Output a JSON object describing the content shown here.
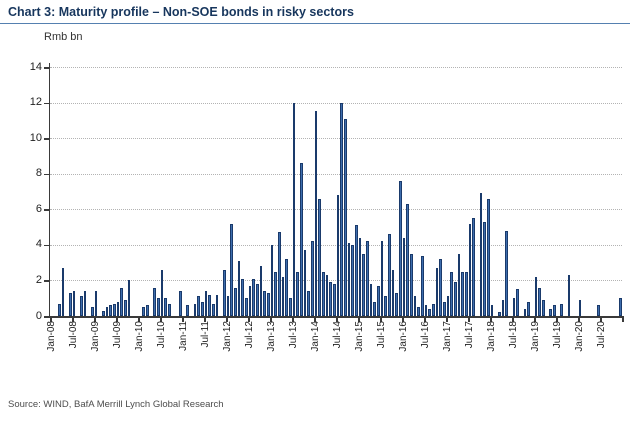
{
  "header": {
    "title": "Chart 3: Maturity profile – Non-SOE bonds in risky sectors"
  },
  "footer": {
    "source": "Source: WIND, BafA Merrill Lynch Global Research"
  },
  "colors": {
    "title": "#17365D",
    "title_rule": "#5580b0",
    "bar_fill": "#3E6DAD",
    "bar_border": "#1A3A6B",
    "axis": "#3a3a3a",
    "gridline": "#b3b3b3"
  },
  "chart_data": {
    "type": "bar",
    "title": "Chart 3: Maturity profile – Non-SOE bonds in risky sectors",
    "unit_label": "Rmb bn",
    "xlabel": "",
    "ylabel": "Rmb bn",
    "ylim": [
      0,
      14
    ],
    "yticks": [
      0,
      2,
      4,
      6,
      8,
      10,
      12,
      14
    ],
    "grid": "horizontal-dotted",
    "legend": "none",
    "xtick_interval_months": 6,
    "xtick_labels": [
      "Jan-08",
      "Jul-08",
      "Jan-09",
      "Jul-09",
      "Jan-10",
      "Jul-10",
      "Jan-11",
      "Jul-11",
      "Jan-12",
      "Jul-12",
      "Jan-13",
      "Jul-13",
      "Jan-14",
      "Jul-14",
      "Jan-15",
      "Jul-15",
      "Jan-16",
      "Jul-16",
      "Jan-17",
      "Jul-17",
      "Jan-18",
      "Jul-18",
      "Jan-19",
      "Jul-19",
      "Jan-20",
      "Jul-20"
    ],
    "categories": [
      "Jan-08",
      "Feb-08",
      "Mar-08",
      "Apr-08",
      "May-08",
      "Jun-08",
      "Jul-08",
      "Aug-08",
      "Sep-08",
      "Oct-08",
      "Nov-08",
      "Dec-08",
      "Jan-09",
      "Feb-09",
      "Mar-09",
      "Apr-09",
      "May-09",
      "Jun-09",
      "Jul-09",
      "Aug-09",
      "Sep-09",
      "Oct-09",
      "Nov-09",
      "Dec-09",
      "Jan-10",
      "Feb-10",
      "Mar-10",
      "Apr-10",
      "May-10",
      "Jun-10",
      "Jul-10",
      "Aug-10",
      "Sep-10",
      "Oct-10",
      "Nov-10",
      "Dec-10",
      "Jan-11",
      "Feb-11",
      "Mar-11",
      "Apr-11",
      "May-11",
      "Jun-11",
      "Jul-11",
      "Aug-11",
      "Sep-11",
      "Oct-11",
      "Nov-11",
      "Dec-11",
      "Jan-12",
      "Feb-12",
      "Mar-12",
      "Apr-12",
      "May-12",
      "Jun-12",
      "Jul-12",
      "Aug-12",
      "Sep-12",
      "Oct-12",
      "Nov-12",
      "Dec-12",
      "Jan-13",
      "Feb-13",
      "Mar-13",
      "Apr-13",
      "May-13",
      "Jun-13",
      "Jul-13",
      "Aug-13",
      "Sep-13",
      "Oct-13",
      "Nov-13",
      "Dec-13",
      "Jan-14",
      "Feb-14",
      "Mar-14",
      "Apr-14",
      "May-14",
      "Jun-14",
      "Jul-14",
      "Aug-14",
      "Sep-14",
      "Oct-14",
      "Nov-14",
      "Dec-14",
      "Jan-15",
      "Feb-15",
      "Mar-15",
      "Apr-15",
      "May-15",
      "Jun-15",
      "Jul-15",
      "Aug-15",
      "Sep-15",
      "Oct-15",
      "Nov-15",
      "Dec-15",
      "Jan-16",
      "Feb-16",
      "Mar-16",
      "Apr-16",
      "May-16",
      "Jun-16",
      "Jul-16",
      "Aug-16",
      "Sep-16",
      "Oct-16",
      "Nov-16",
      "Dec-16",
      "Jan-17",
      "Feb-17",
      "Mar-17",
      "Apr-17",
      "May-17",
      "Jun-17",
      "Jul-17",
      "Aug-17",
      "Sep-17",
      "Oct-17",
      "Nov-17",
      "Dec-17",
      "Jan-18",
      "Feb-18",
      "Mar-18",
      "Apr-18",
      "May-18",
      "Jun-18",
      "Jul-18",
      "Aug-18",
      "Sep-18",
      "Oct-18",
      "Nov-18",
      "Dec-18",
      "Jan-19",
      "Feb-19",
      "Mar-19",
      "Apr-19",
      "May-19",
      "Jun-19",
      "Jul-19",
      "Aug-19",
      "Sep-19",
      "Oct-19",
      "Nov-19",
      "Dec-19",
      "Jan-20",
      "Feb-20",
      "Mar-20",
      "Apr-20",
      "May-20",
      "Jun-20",
      "Jul-20",
      "Aug-20",
      "Sep-20",
      "Oct-20",
      "Nov-20",
      "Dec-20"
    ],
    "values": [
      0,
      0,
      0.7,
      2.7,
      0,
      1.3,
      1.4,
      0,
      1.1,
      1.4,
      0,
      0.5,
      1.4,
      0,
      0.3,
      0.5,
      0.6,
      0.7,
      0.8,
      1.6,
      0.9,
      2.0,
      0,
      0,
      0,
      0.5,
      0.6,
      0,
      1.6,
      1.0,
      2.6,
      1.0,
      0.7,
      0,
      0,
      1.4,
      0,
      0.6,
      0,
      0.7,
      1.1,
      0.8,
      1.4,
      1.2,
      0.7,
      1.2,
      0,
      2.6,
      1.1,
      5.2,
      1.6,
      3.1,
      2.1,
      1.0,
      1.7,
      2.1,
      1.8,
      2.8,
      1.4,
      1.3,
      4.0,
      2.5,
      4.7,
      2.2,
      3.2,
      1.0,
      12.0,
      2.5,
      8.6,
      3.7,
      1.4,
      4.2,
      11.5,
      6.6,
      2.5,
      2.3,
      1.9,
      1.8,
      6.8,
      12.0,
      11.1,
      4.1,
      4.0,
      5.1,
      4.4,
      3.5,
      4.2,
      1.8,
      0.8,
      1.7,
      4.2,
      1.1,
      4.6,
      2.6,
      1.3,
      7.6,
      4.4,
      6.3,
      3.5,
      1.1,
      0.5,
      3.4,
      0.6,
      0.4,
      0.7,
      2.7,
      3.2,
      0.8,
      1.1,
      2.5,
      1.9,
      3.5,
      2.5,
      2.5,
      5.2,
      5.5,
      0,
      6.9,
      5.3,
      6.6,
      0.6,
      0,
      0.2,
      0.9,
      4.8,
      0,
      1.0,
      1.5,
      0,
      0.4,
      0.8,
      0,
      2.2,
      1.6,
      0.9,
      0,
      0.4,
      0.6,
      0,
      0.7,
      0,
      2.3,
      0,
      0,
      0.9,
      0,
      0,
      0,
      0,
      0.6,
      0,
      0,
      0,
      0,
      0,
      1.0
    ]
  }
}
